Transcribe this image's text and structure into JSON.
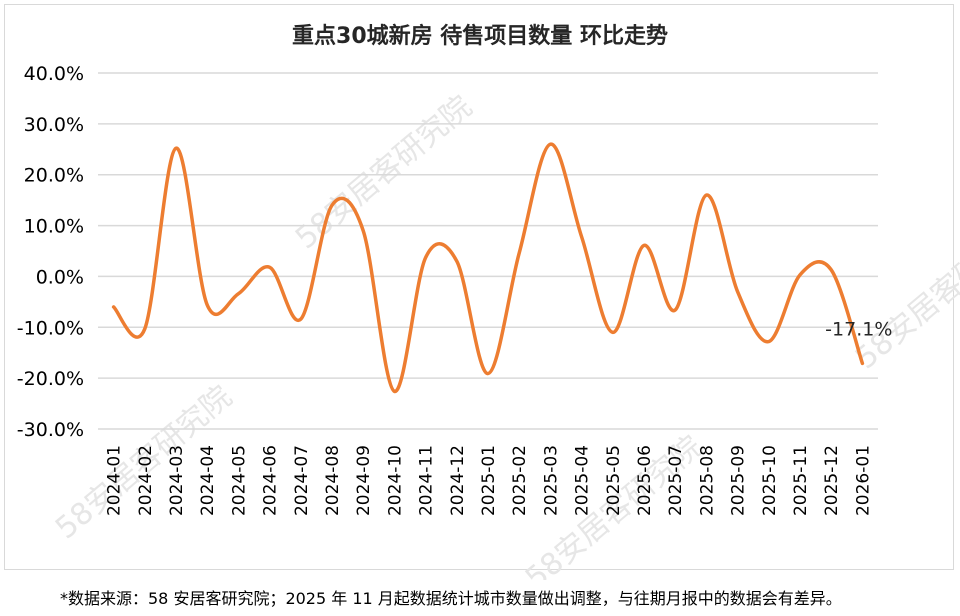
{
  "watermark": "58安居客研究院",
  "footnote": "*数据来源：58 安居客研究院；2025 年 11 月起数据统计城市数量做出调整，与往期月报中的数据会有差异。",
  "colors": {
    "line": "#ED7D31",
    "grid": "#d9d9d9",
    "text": "#000000"
  },
  "chart_data": {
    "type": "line",
    "title": "重点30城新房 待售项目数量 环比走势",
    "xlabel": "",
    "ylabel": "",
    "ylim": [
      -30,
      40
    ],
    "y_unit": "%",
    "yticks": [
      "40.0%",
      "30.0%",
      "20.0%",
      "10.0%",
      "0.0%",
      "-10.0%",
      "-20.0%",
      "-30.0%"
    ],
    "grid": true,
    "legend": "none",
    "categories": [
      "2024-01",
      "2024-02",
      "2024-03",
      "2024-04",
      "2024-05",
      "2024-06",
      "2024-07",
      "2024-08",
      "2024-09",
      "2024-10",
      "2024-11",
      "2024-12",
      "2025-01",
      "2025-02",
      "2025-03",
      "2025-04",
      "2025-05",
      "2025-06",
      "2025-07",
      "2025-08",
      "2025-09",
      "2025-10",
      "2025-11",
      "2025-12",
      "2026-01"
    ],
    "series": [
      {
        "values": [
          -6.0,
          -10.3,
          25.2,
          -5.6,
          -3.4,
          1.8,
          -8.4,
          14.0,
          9.0,
          -22.6,
          3.7,
          3.0,
          -19.1,
          4.6,
          26.0,
          7.8,
          -11.0,
          6.1,
          -6.6,
          16.0,
          -3.0,
          -12.8,
          0.3,
          1.3,
          -17.1
        ]
      }
    ],
    "data_labels": [
      {
        "index": 24,
        "text": "-17.1%"
      }
    ]
  }
}
